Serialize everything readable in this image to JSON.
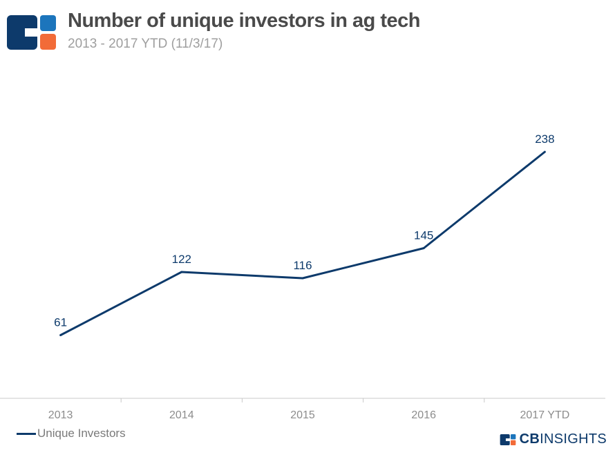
{
  "header": {
    "title": "Number of unique investors in ag tech",
    "subtitle": "2013 - 2017 YTD (11/3/17)"
  },
  "brand": {
    "bold": "CB",
    "light": "INSIGHTS"
  },
  "colors": {
    "line": "#0d3a6b",
    "accent": "#f26b38",
    "logo_blue": "#0d3a6b",
    "logo_light_blue": "#1c75bc",
    "axis": "#c8c8c8",
    "tick_text": "#8c8c8c"
  },
  "chart_data": {
    "type": "line",
    "title": "Number of unique investors in ag tech",
    "subtitle": "2013 - 2017 YTD (11/3/17)",
    "categories": [
      "2013",
      "2014",
      "2015",
      "2016",
      "2017 YTD"
    ],
    "series": [
      {
        "name": "Unique Investors",
        "values": [
          61,
          122,
          116,
          145,
          238
        ]
      }
    ],
    "xlabel": "",
    "ylabel": "",
    "ylim": [
      0,
      250
    ],
    "grid": false,
    "legend": "bottom-left"
  }
}
